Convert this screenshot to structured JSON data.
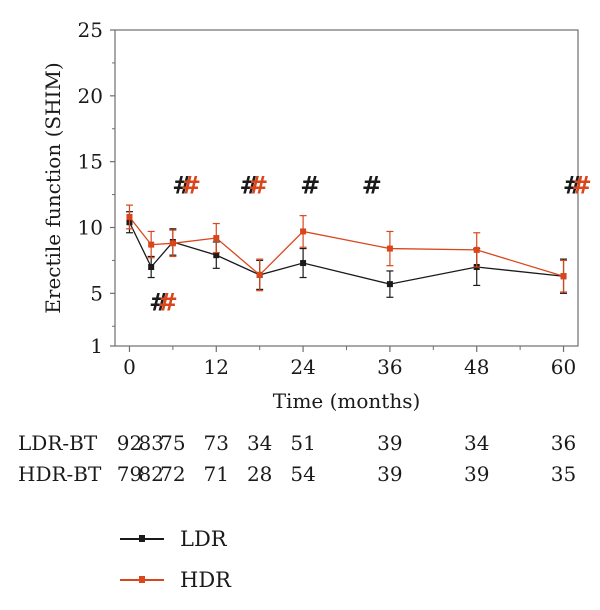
{
  "chart_data": {
    "type": "line",
    "title": "",
    "xlabel": "Time (months)",
    "ylabel": "Erectile function (SHIM)",
    "xlim": [
      -2,
      62
    ],
    "ylim": [
      1,
      25
    ],
    "xticks": [
      0,
      12,
      24,
      36,
      48,
      60
    ],
    "yticks": [
      1,
      5,
      10,
      15,
      20,
      25
    ],
    "grid": false,
    "series": [
      {
        "name": "LDR",
        "color": "#1a1a1a",
        "x": [
          0,
          3,
          6,
          12,
          18,
          24,
          36,
          48,
          60
        ],
        "y": [
          10.4,
          7.0,
          8.9,
          7.9,
          6.4,
          7.3,
          5.7,
          7.0,
          6.3
        ],
        "err": [
          0.8,
          0.8,
          1.0,
          1.0,
          1.1,
          1.1,
          1.0,
          1.4,
          1.3
        ]
      },
      {
        "name": "HDR",
        "color": "#d9461b",
        "x": [
          0,
          3,
          6,
          12,
          18,
          24,
          36,
          48,
          60
        ],
        "y": [
          10.8,
          8.7,
          8.8,
          9.2,
          6.4,
          9.7,
          8.4,
          8.3,
          6.3
        ],
        "err": [
          0.9,
          1.0,
          1.0,
          1.1,
          1.2,
          1.2,
          1.3,
          1.3,
          1.2
        ]
      }
    ],
    "annotations": [
      {
        "text": "#",
        "color": "#1a1a1a",
        "x": 4.1,
        "y": 3.7
      },
      {
        "text": "#",
        "color": "#d9461b",
        "x": 5.3,
        "y": 3.7
      },
      {
        "text": "#",
        "color": "#1a1a1a",
        "x": 7.3,
        "y": 12.6
      },
      {
        "text": "#",
        "color": "#d9461b",
        "x": 8.5,
        "y": 12.6
      },
      {
        "text": "#",
        "color": "#1a1a1a",
        "x": 16.6,
        "y": 12.6
      },
      {
        "text": "#",
        "color": "#d9461b",
        "x": 17.8,
        "y": 12.6
      },
      {
        "text": "#",
        "color": "#1a1a1a",
        "x": 25.0,
        "y": 12.6
      },
      {
        "text": "#",
        "color": "#1a1a1a",
        "x": 33.5,
        "y": 12.6
      },
      {
        "text": "#",
        "color": "#1a1a1a",
        "x": 61.3,
        "y": 12.6
      },
      {
        "text": "#",
        "color": "#d9461b",
        "x": 62.5,
        "y": 12.6
      }
    ],
    "risk_table": {
      "rows": [
        {
          "label": "LDR-BT",
          "values": [
            "92",
            "83",
            "75",
            "73",
            "34",
            "51",
            "39",
            "34",
            "36"
          ]
        },
        {
          "label": "HDR-BT",
          "values": [
            "79",
            "82",
            "72",
            "71",
            "28",
            "54",
            "39",
            "39",
            "35"
          ]
        }
      ],
      "x": [
        0,
        3,
        6,
        12,
        18,
        24,
        36,
        48,
        60
      ]
    },
    "legend_position": "bottom-left"
  }
}
